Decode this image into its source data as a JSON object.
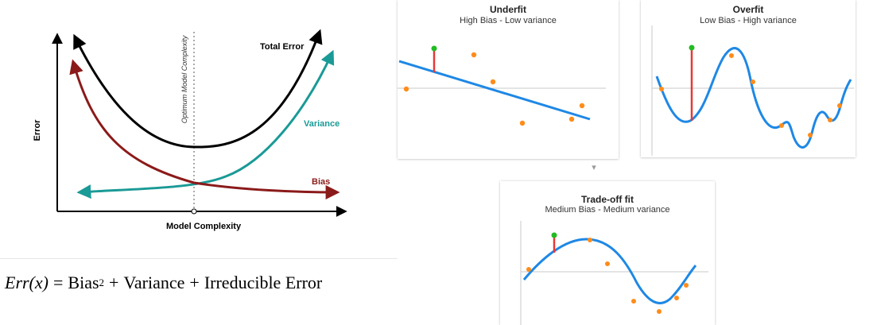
{
  "left_chart": {
    "y_label": "Error",
    "x_label": "Model Complexity",
    "optimum_label": "Optimum Model Complexity",
    "curves": {
      "total_error": {
        "label": "Total Error",
        "color": "#000000"
      },
      "variance": {
        "label": "Variance",
        "color": "#1a9a96"
      },
      "bias": {
        "label": "Bias",
        "color": "#8b1a1a"
      }
    }
  },
  "formula": {
    "lhs": "Err(x)",
    "equals": "=",
    "term1": "Bias",
    "term1_exp": "2",
    "plus1": "+",
    "term2": "Variance",
    "plus2": "+",
    "term3": "Irreducible Error"
  },
  "cards": {
    "underfit": {
      "title": "Underfit",
      "subtitle": "High Bias - Low variance"
    },
    "overfit": {
      "title": "Overfit",
      "subtitle": "Low Bias - High variance"
    },
    "tradeoff": {
      "title": "Trade-off fit",
      "subtitle": "Medium Bias - Medium variance"
    }
  },
  "connector_icon": "arrow-down-icon",
  "colors": {
    "fit_line": "#1e88e5",
    "data_point": "#ff8c1a",
    "highlight_point": "#22bb22",
    "residual": "#e53935",
    "baseline": "#c8c8c8"
  }
}
